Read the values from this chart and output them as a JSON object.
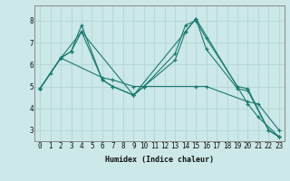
{
  "xlabel": "Humidex (Indice chaleur)",
  "bg_color": "#cce8e8",
  "grid_color": "#b8d8d8",
  "line_color": "#1a7a6e",
  "xlim": [
    -0.5,
    23.5
  ],
  "ylim": [
    2.5,
    8.7
  ],
  "xticks": [
    0,
    1,
    2,
    3,
    4,
    5,
    6,
    7,
    8,
    9,
    10,
    11,
    12,
    13,
    14,
    15,
    16,
    17,
    18,
    19,
    20,
    21,
    22,
    23
  ],
  "yticks": [
    3,
    4,
    5,
    6,
    7,
    8
  ],
  "series": [
    {
      "x": [
        0,
        2,
        3,
        4,
        6,
        7,
        9,
        10,
        13,
        14,
        15,
        16,
        19,
        20,
        22,
        23
      ],
      "y": [
        4.9,
        6.3,
        6.6,
        7.8,
        5.3,
        5.0,
        4.6,
        5.0,
        6.2,
        7.5,
        8.1,
        6.7,
        4.9,
        4.8,
        3.0,
        2.7
      ]
    },
    {
      "x": [
        0,
        2,
        3,
        4,
        6,
        7,
        9,
        10,
        13,
        14,
        15,
        16,
        19,
        20,
        22,
        23
      ],
      "y": [
        4.9,
        6.3,
        6.6,
        7.5,
        5.3,
        5.0,
        4.6,
        5.0,
        6.5,
        7.8,
        8.0,
        7.2,
        5.0,
        4.9,
        3.0,
        2.7
      ]
    },
    {
      "x": [
        0,
        2,
        4,
        9,
        14,
        15,
        20,
        21,
        23
      ],
      "y": [
        4.9,
        6.3,
        7.5,
        4.6,
        7.5,
        8.1,
        4.2,
        3.6,
        2.7
      ]
    },
    {
      "x": [
        0,
        1,
        2,
        6,
        7,
        9,
        10,
        15,
        16,
        20,
        21,
        23
      ],
      "y": [
        4.9,
        5.6,
        6.3,
        5.4,
        5.3,
        5.0,
        5.0,
        5.0,
        5.0,
        4.3,
        4.2,
        3.0
      ]
    }
  ]
}
